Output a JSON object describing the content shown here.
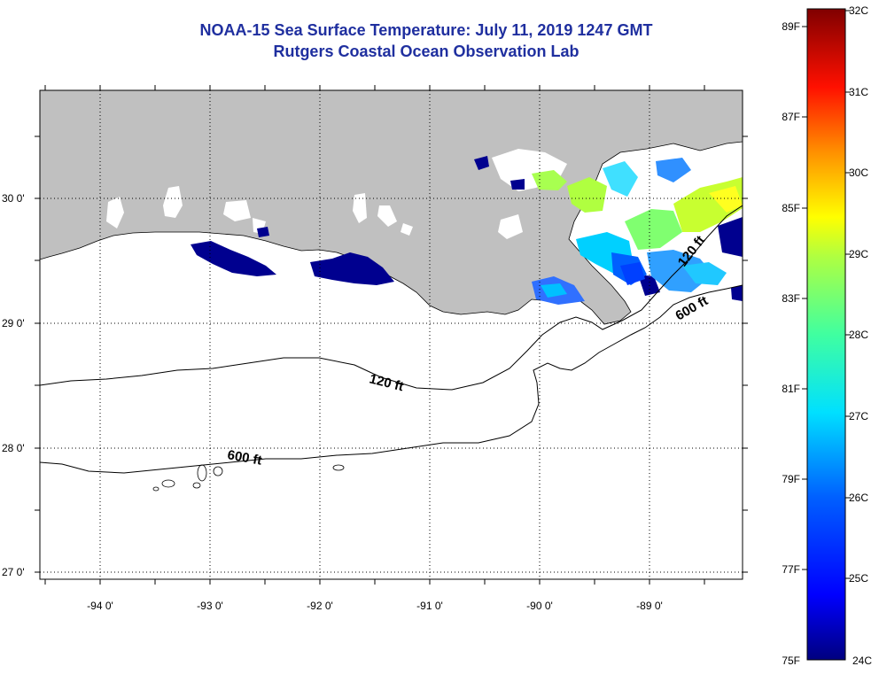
{
  "title": "NOAA-15 Sea Surface Temperature:  July 11, 2019 1247 GMT",
  "subtitle": "Rutgers Coastal Ocean Observation Lab",
  "lon_ticks": [
    "-94 0'",
    "-93 0'",
    "-92 0'",
    "-91 0'",
    "-90 0'",
    "-89 0'"
  ],
  "lat_ticks": [
    "30 0'",
    "29 0'",
    "28 0'",
    "27 0'"
  ],
  "contours": {
    "c120": "120 ft",
    "c600": "600 ft"
  },
  "colorbar": {
    "fahrenheit": [
      "89F",
      "87F",
      "85F",
      "83F",
      "81F",
      "79F",
      "77F",
      "75F"
    ],
    "celsius": [
      "32C",
      "31C",
      "30C",
      "29C",
      "28C",
      "27C",
      "26C",
      "25C",
      "24C"
    ]
  },
  "colors": {
    "title": "#1f2f9f",
    "land": "#c0c0c0",
    "cold": "#00008f",
    "warm": "#8f0000"
  }
}
